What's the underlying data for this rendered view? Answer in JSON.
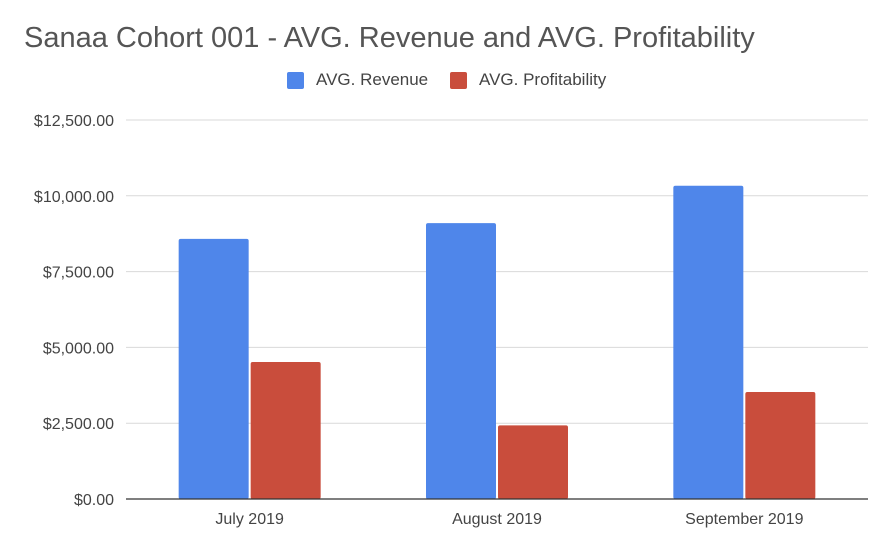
{
  "colors": {
    "revenue": "#4f86ea",
    "profitability": "#c94d3c",
    "grid": "#d9d9d9",
    "axis": "#333333"
  },
  "chart_data": {
    "type": "bar",
    "title": "Sanaa Cohort 001 - AVG. Revenue and AVG. Profitability",
    "categories": [
      "July 2019",
      "August 2019",
      "September 2019"
    ],
    "series": [
      {
        "name": "AVG. Revenue",
        "values": [
          8580,
          9100,
          10330
        ]
      },
      {
        "name": "AVG. Profitability",
        "values": [
          4520,
          2430,
          3530
        ]
      }
    ],
    "ylim": [
      0,
      12500
    ],
    "yticks": [
      0,
      2500,
      5000,
      7500,
      10000,
      12500
    ],
    "ytick_labels": [
      "$0.00",
      "$2,500.00",
      "$5,000.00",
      "$7,500.00",
      "$10,000.00",
      "$12,500.00"
    ],
    "grid": true,
    "legend_position": "top-center"
  }
}
